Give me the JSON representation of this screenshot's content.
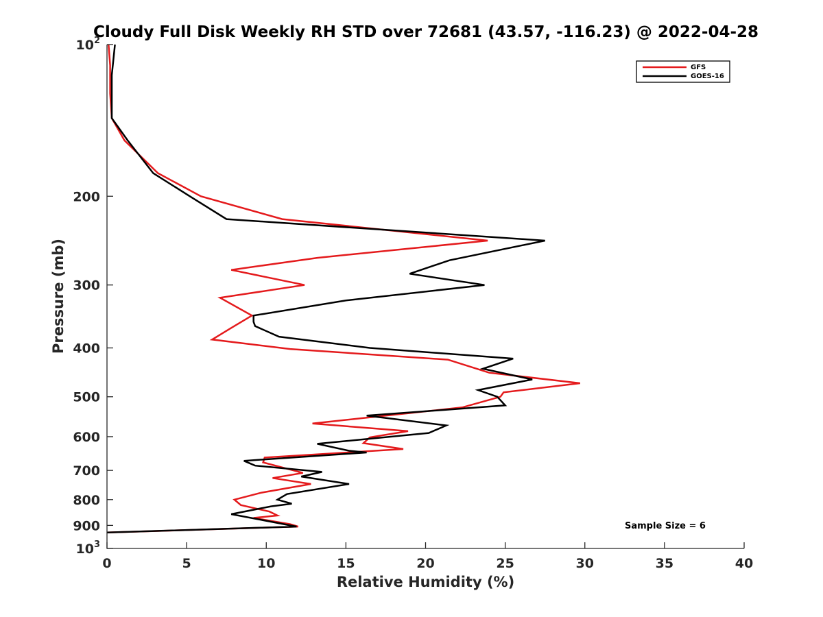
{
  "chart_data": {
    "type": "line",
    "title": "Cloudy Full Disk Weekly RH STD over 72681 (43.57, -116.23) @ 2022-04-28",
    "xlabel": "Relative Humidity (%)",
    "ylabel": "Pressure (mb)",
    "xlim": [
      0,
      40
    ],
    "ylim": [
      100,
      1000
    ],
    "yscale": "log",
    "y_reversed": true,
    "xticks": [
      "0",
      "5",
      "10",
      "15",
      "20",
      "25",
      "30",
      "35",
      "40"
    ],
    "yticks": [
      {
        "value": 100,
        "base": "10",
        "exp": "2"
      },
      {
        "value": 200,
        "label": "200"
      },
      {
        "value": 300,
        "label": "300"
      },
      {
        "value": 400,
        "label": "400"
      },
      {
        "value": 500,
        "label": "500"
      },
      {
        "value": 600,
        "label": "600"
      },
      {
        "value": 700,
        "label": "700"
      },
      {
        "value": 800,
        "label": "800"
      },
      {
        "value": 900,
        "label": "900"
      },
      {
        "value": 1000,
        "base": "10",
        "exp": "3"
      }
    ],
    "legend_position": "top-right",
    "annotation": "Sample Size = 6",
    "series": [
      {
        "name": "GFS",
        "color": "#e41a1c",
        "points": [
          [
            0.1,
            100
          ],
          [
            0.2,
            110
          ],
          [
            0.2,
            125
          ],
          [
            0.3,
            140
          ],
          [
            1.1,
            155
          ],
          [
            3.2,
            180
          ],
          [
            5.9,
            200
          ],
          [
            11.0,
            222
          ],
          [
            23.9,
            245
          ],
          [
            13.2,
            265
          ],
          [
            7.8,
            280
          ],
          [
            12.4,
            300
          ],
          [
            7.1,
            318
          ],
          [
            9.1,
            345
          ],
          [
            7.8,
            365
          ],
          [
            6.6,
            385
          ],
          [
            11.5,
            402
          ],
          [
            21.4,
            422
          ],
          [
            24.0,
            448
          ],
          [
            29.7,
            470
          ],
          [
            24.9,
            490
          ],
          [
            24.7,
            500
          ],
          [
            22.3,
            525
          ],
          [
            16.8,
            548
          ],
          [
            12.9,
            565
          ],
          [
            18.9,
            585
          ],
          [
            16.5,
            602
          ],
          [
            16.1,
            618
          ],
          [
            18.6,
            635
          ],
          [
            9.9,
            660
          ],
          [
            9.8,
            675
          ],
          [
            12.3,
            708
          ],
          [
            10.4,
            725
          ],
          [
            12.8,
            745
          ],
          [
            9.7,
            775
          ],
          [
            8.0,
            800
          ],
          [
            8.4,
            820
          ],
          [
            10.2,
            845
          ],
          [
            10.7,
            860
          ],
          [
            9.2,
            870
          ],
          [
            11.5,
            895
          ],
          [
            12.0,
            905
          ],
          [
            0.0,
            930
          ]
        ]
      },
      {
        "name": "GOES-16",
        "color": "#000000",
        "points": [
          [
            0.5,
            100
          ],
          [
            0.3,
            115
          ],
          [
            0.3,
            125
          ],
          [
            0.3,
            140
          ],
          [
            1.3,
            155
          ],
          [
            2.9,
            180
          ],
          [
            5.2,
            200
          ],
          [
            7.5,
            222
          ],
          [
            27.5,
            245
          ],
          [
            21.5,
            268
          ],
          [
            19.0,
            285
          ],
          [
            23.7,
            300
          ],
          [
            15.0,
            322
          ],
          [
            9.2,
            345
          ],
          [
            9.2,
            355
          ],
          [
            9.3,
            362
          ],
          [
            10.8,
            380
          ],
          [
            16.5,
            400
          ],
          [
            25.5,
            420
          ],
          [
            23.6,
            440
          ],
          [
            26.7,
            462
          ],
          [
            23.3,
            485
          ],
          [
            24.5,
            500
          ],
          [
            25.0,
            520
          ],
          [
            16.3,
            545
          ],
          [
            21.3,
            570
          ],
          [
            20.2,
            590
          ],
          [
            13.2,
            620
          ],
          [
            15.2,
            640
          ],
          [
            16.3,
            645
          ],
          [
            8.6,
            670
          ],
          [
            9.3,
            685
          ],
          [
            13.5,
            705
          ],
          [
            12.2,
            720
          ],
          [
            15.2,
            745
          ],
          [
            11.3,
            780
          ],
          [
            10.7,
            800
          ],
          [
            11.6,
            815
          ],
          [
            10.3,
            825
          ],
          [
            7.8,
            855
          ],
          [
            11.9,
            905
          ],
          [
            0.0,
            930
          ]
        ]
      }
    ]
  }
}
